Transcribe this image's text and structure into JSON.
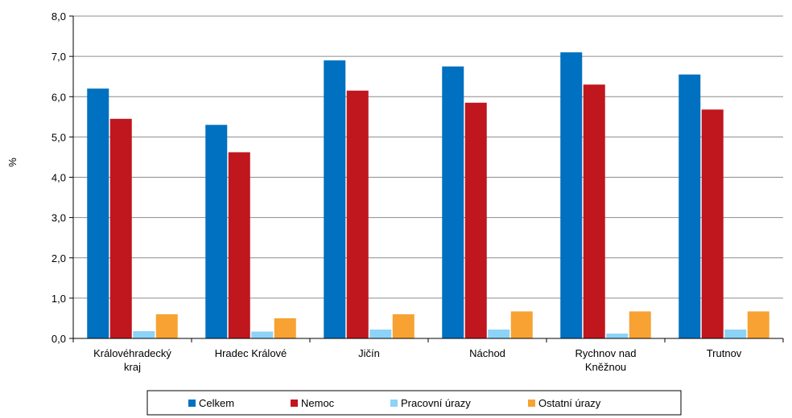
{
  "chart_data": {
    "type": "bar",
    "title": "",
    "xlabel": "",
    "ylabel": "%",
    "ylim": [
      0,
      8
    ],
    "yticks": [
      "0,0",
      "1,0",
      "2,0",
      "3,0",
      "4,0",
      "5,0",
      "6,0",
      "7,0",
      "8,0"
    ],
    "grid": true,
    "legend_position": "bottom",
    "categories": [
      [
        "Královéhradecký",
        "kraj"
      ],
      [
        "Hradec Králové"
      ],
      [
        "Jičín"
      ],
      [
        "Náchod"
      ],
      [
        "Rychnov nad",
        "Kněžnou"
      ],
      [
        "Trutnov"
      ]
    ],
    "series": [
      {
        "name": "Celkem",
        "color": "#0070C0",
        "values": [
          6.2,
          5.3,
          6.9,
          6.75,
          7.1,
          6.55
        ]
      },
      {
        "name": "Nemoc",
        "color": "#C0161E",
        "values": [
          5.45,
          4.62,
          6.15,
          5.85,
          6.3,
          5.68
        ]
      },
      {
        "name": "Pracovní úrazy",
        "color": "#8DD3F7",
        "values": [
          0.18,
          0.17,
          0.22,
          0.22,
          0.12,
          0.22
        ]
      },
      {
        "name": "Ostatní úrazy",
        "color": "#F7A232",
        "values": [
          0.6,
          0.5,
          0.6,
          0.67,
          0.67,
          0.67
        ]
      }
    ]
  }
}
